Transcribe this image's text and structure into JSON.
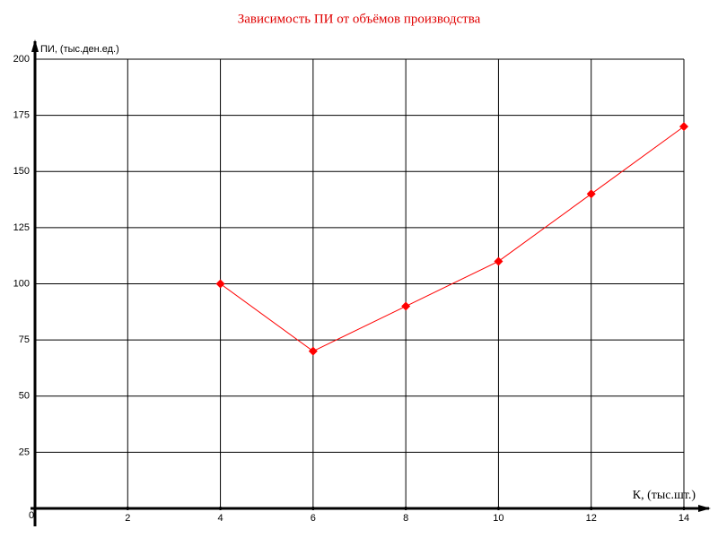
{
  "chart_data": {
    "type": "line",
    "title": "Зависимость ПИ от объёмов производства",
    "x_label": "К, (тыс.шт.)",
    "y_label": "ПИ, (тыс.ден.ед.)",
    "x": [
      4,
      6,
      8,
      10,
      12,
      14
    ],
    "series": [
      {
        "name": "ПИ",
        "color": "#ff0000",
        "values": [
          100,
          70,
          90,
          110,
          140,
          170
        ]
      }
    ],
    "xlim": [
      0,
      14
    ],
    "xticks": [
      0,
      2,
      4,
      6,
      8,
      10,
      12,
      14
    ],
    "ylim": [
      0,
      200
    ],
    "yticks": [
      25,
      50,
      75,
      100,
      125,
      150,
      175,
      200
    ],
    "grid": true
  }
}
